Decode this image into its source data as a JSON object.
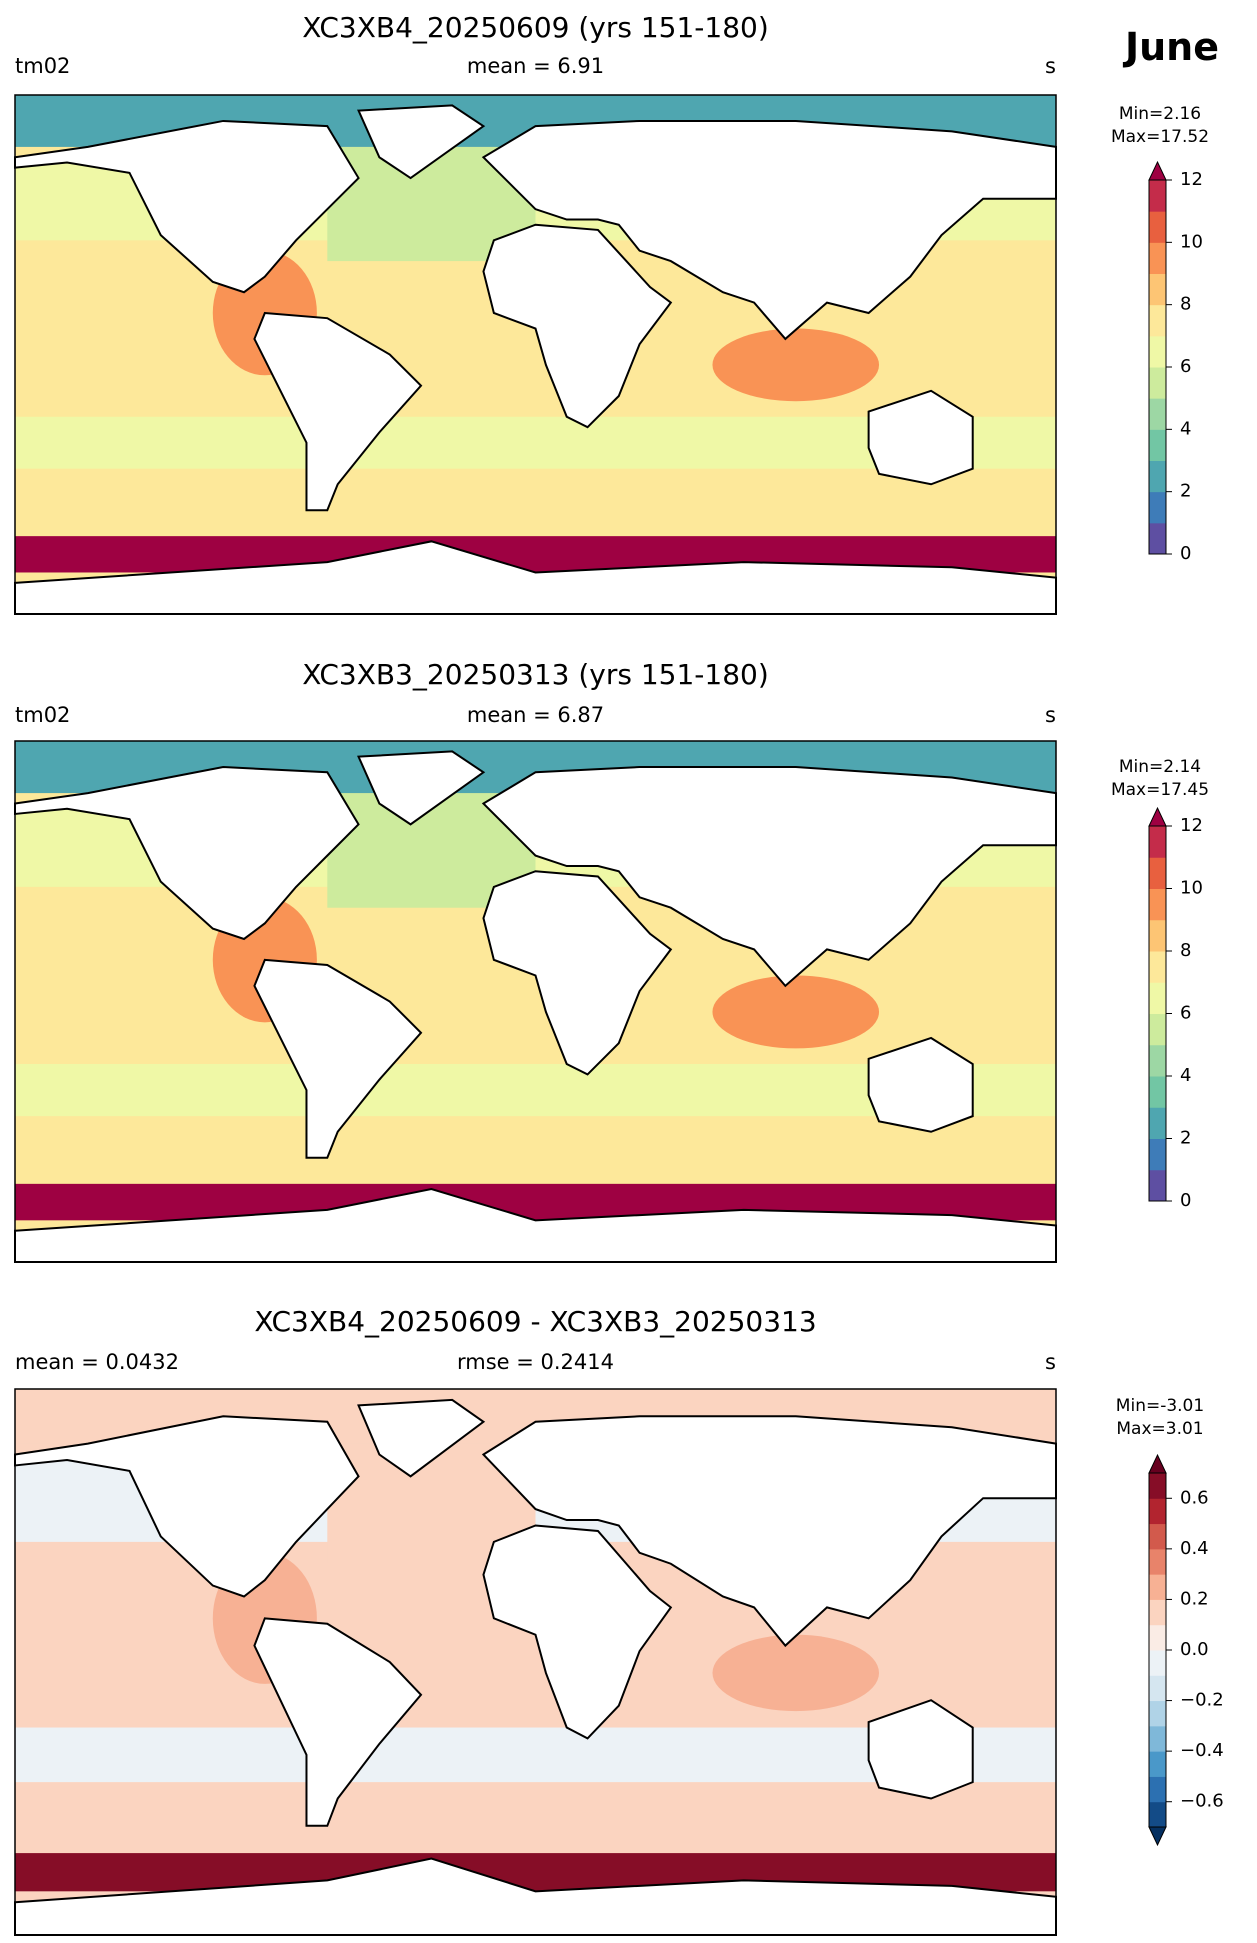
{
  "header": {
    "month": "June"
  },
  "panels": [
    {
      "title": "XC3XB4_20250609 (yrs 151-180)",
      "left_label": "tm02",
      "center_label": "mean = 6.91",
      "right_label": "s",
      "min_label": "Min=2.16",
      "max_label": "Max=17.52",
      "colorbar": {
        "range": [
          0,
          12
        ],
        "ticks": [
          0,
          2,
          4,
          6,
          8,
          10,
          12
        ],
        "extend": "max",
        "colors": [
          "#5e4fa2",
          "#3e7cb8",
          "#4fa6b0",
          "#72c6a4",
          "#9dd7a4",
          "#cdeb9d",
          "#eff8a6",
          "#fde89a",
          "#fdc574",
          "#f99355",
          "#e8603f",
          "#c42c4a"
        ],
        "extend_color": "#9e0142"
      }
    },
    {
      "title": "XC3XB3_20250313 (yrs 151-180)",
      "left_label": "tm02",
      "center_label": "mean = 6.87",
      "right_label": "s",
      "min_label": "Min=2.14",
      "max_label": "Max=17.45",
      "colorbar": {
        "range": [
          0,
          12
        ],
        "ticks": [
          0,
          2,
          4,
          6,
          8,
          10,
          12
        ],
        "extend": "max",
        "colors": [
          "#5e4fa2",
          "#3e7cb8",
          "#4fa6b0",
          "#72c6a4",
          "#9dd7a4",
          "#cdeb9d",
          "#eff8a6",
          "#fde89a",
          "#fdc574",
          "#f99355",
          "#e8603f",
          "#c42c4a"
        ],
        "extend_color": "#9e0142"
      }
    },
    {
      "title": "XC3XB4_20250609 - XC3XB3_20250313",
      "left_label": "mean = 0.0432",
      "center_label": "rmse = 0.2414",
      "right_label": "s",
      "min_label": "Min=-3.01",
      "max_label": "Max=3.01",
      "colorbar": {
        "range": [
          -0.7,
          0.7
        ],
        "ticks": [
          {
            "value": -0.6,
            "label": "−0.6"
          },
          {
            "value": -0.4,
            "label": "−0.4"
          },
          {
            "value": -0.2,
            "label": "−0.2"
          },
          {
            "value": 0,
            "label": "0.0"
          },
          0.2,
          0.4,
          0.6
        ],
        "extend": "both",
        "colors": [
          "#134b87",
          "#2c70b1",
          "#4a98c9",
          "#7fb8d9",
          "#b0d3e7",
          "#d5e6f0",
          "#ecf2f6",
          "#faece5",
          "#fbd4c0",
          "#f7b194",
          "#e8836a",
          "#d25a4c",
          "#b2242f",
          "#860d27"
        ],
        "extend_color": "#67001f",
        "extend_low_color": "#053061"
      }
    }
  ]
}
